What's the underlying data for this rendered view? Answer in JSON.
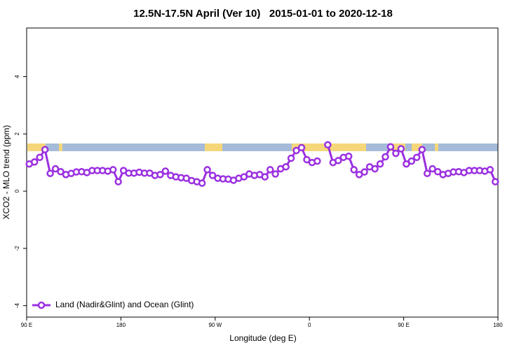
{
  "chart_data": {
    "type": "line",
    "title": "12.5N-17.5N April (Ver 10)   2015-01-01 to 2020-12-18",
    "x_label": "Longitude (deg E)",
    "y_label": "XCO2 - MLO trend (ppm)",
    "x": [
      92.5,
      97.5,
      102.5,
      107.5,
      112.5,
      117.5,
      122.5,
      127.5,
      132.5,
      137.5,
      142.5,
      147.5,
      152.5,
      157.5,
      162.5,
      167.5,
      172.5,
      177.5,
      182.5,
      187.5,
      192.5,
      197.5,
      202.5,
      207.5,
      212.5,
      217.5,
      222.5,
      227.5,
      232.5,
      237.5,
      242.5,
      247.5,
      252.5,
      257.5,
      262.5,
      267.5,
      272.5,
      277.5,
      282.5,
      287.5,
      292.5,
      297.5,
      302.5,
      307.5,
      312.5,
      317.5,
      322.5,
      327.5,
      332.5,
      337.5,
      342.5,
      347.5,
      352.5,
      357.5,
      362.5,
      367.5,
      372.5,
      377.5,
      382.5,
      387.5,
      392.5,
      397.5,
      402.5,
      407.5,
      412.5,
      417.5,
      422.5,
      427.5,
      432.5,
      437.5,
      442.5,
      447.5,
      452.5,
      457.5,
      462.5,
      467.5,
      472.5,
      477.5,
      482.5,
      487.5,
      492.5,
      497.5,
      502.5,
      507.5,
      512.5,
      517.5,
      522.5,
      527.5,
      532.5,
      537.5
    ],
    "series": [
      {
        "name": "Land (Nadir&Glint) and Ocean (Glint)",
        "color": "#9b30e0",
        "values": [
          0.95,
          1.02,
          1.18,
          1.45,
          0.62,
          0.78,
          0.68,
          0.58,
          0.62,
          0.67,
          0.68,
          0.65,
          0.72,
          0.72,
          0.72,
          0.7,
          0.75,
          0.33,
          0.72,
          0.63,
          0.63,
          0.66,
          0.63,
          0.63,
          0.55,
          0.58,
          0.7,
          0.55,
          0.5,
          0.47,
          0.45,
          0.37,
          0.33,
          0.28,
          0.75,
          0.55,
          0.45,
          0.43,
          0.42,
          0.38,
          0.45,
          0.5,
          0.6,
          0.55,
          0.58,
          0.5,
          0.75,
          0.6,
          0.78,
          0.85,
          1.15,
          1.42,
          1.52,
          1.1,
          1.0,
          1.05,
          null,
          1.62,
          1.0,
          1.07,
          1.18,
          1.22,
          0.75,
          0.58,
          0.67,
          0.85,
          0.78,
          0.95,
          1.2,
          1.55,
          1.32,
          1.48,
          0.95,
          1.05,
          1.18,
          1.45,
          0.62,
          0.78,
          0.68,
          0.58,
          0.62,
          0.67,
          0.68,
          0.65,
          0.72,
          0.72,
          0.72,
          0.7,
          0.75,
          0.33
        ]
      }
    ],
    "xlim": [
      90,
      540
    ],
    "xticks": [
      {
        "value": 90,
        "label": "90 E"
      },
      180,
      {
        "value": 270,
        "label": "90 W"
      },
      {
        "value": 360,
        "label": "0"
      },
      {
        "value": 450,
        "label": "90 E"
      },
      {
        "value": 540,
        "label": "180"
      }
    ],
    "ylim": [
      -4.4,
      5.7
    ],
    "yticks": [
      -4,
      -2,
      0,
      2,
      4
    ],
    "legend": "bottom-left"
  }
}
